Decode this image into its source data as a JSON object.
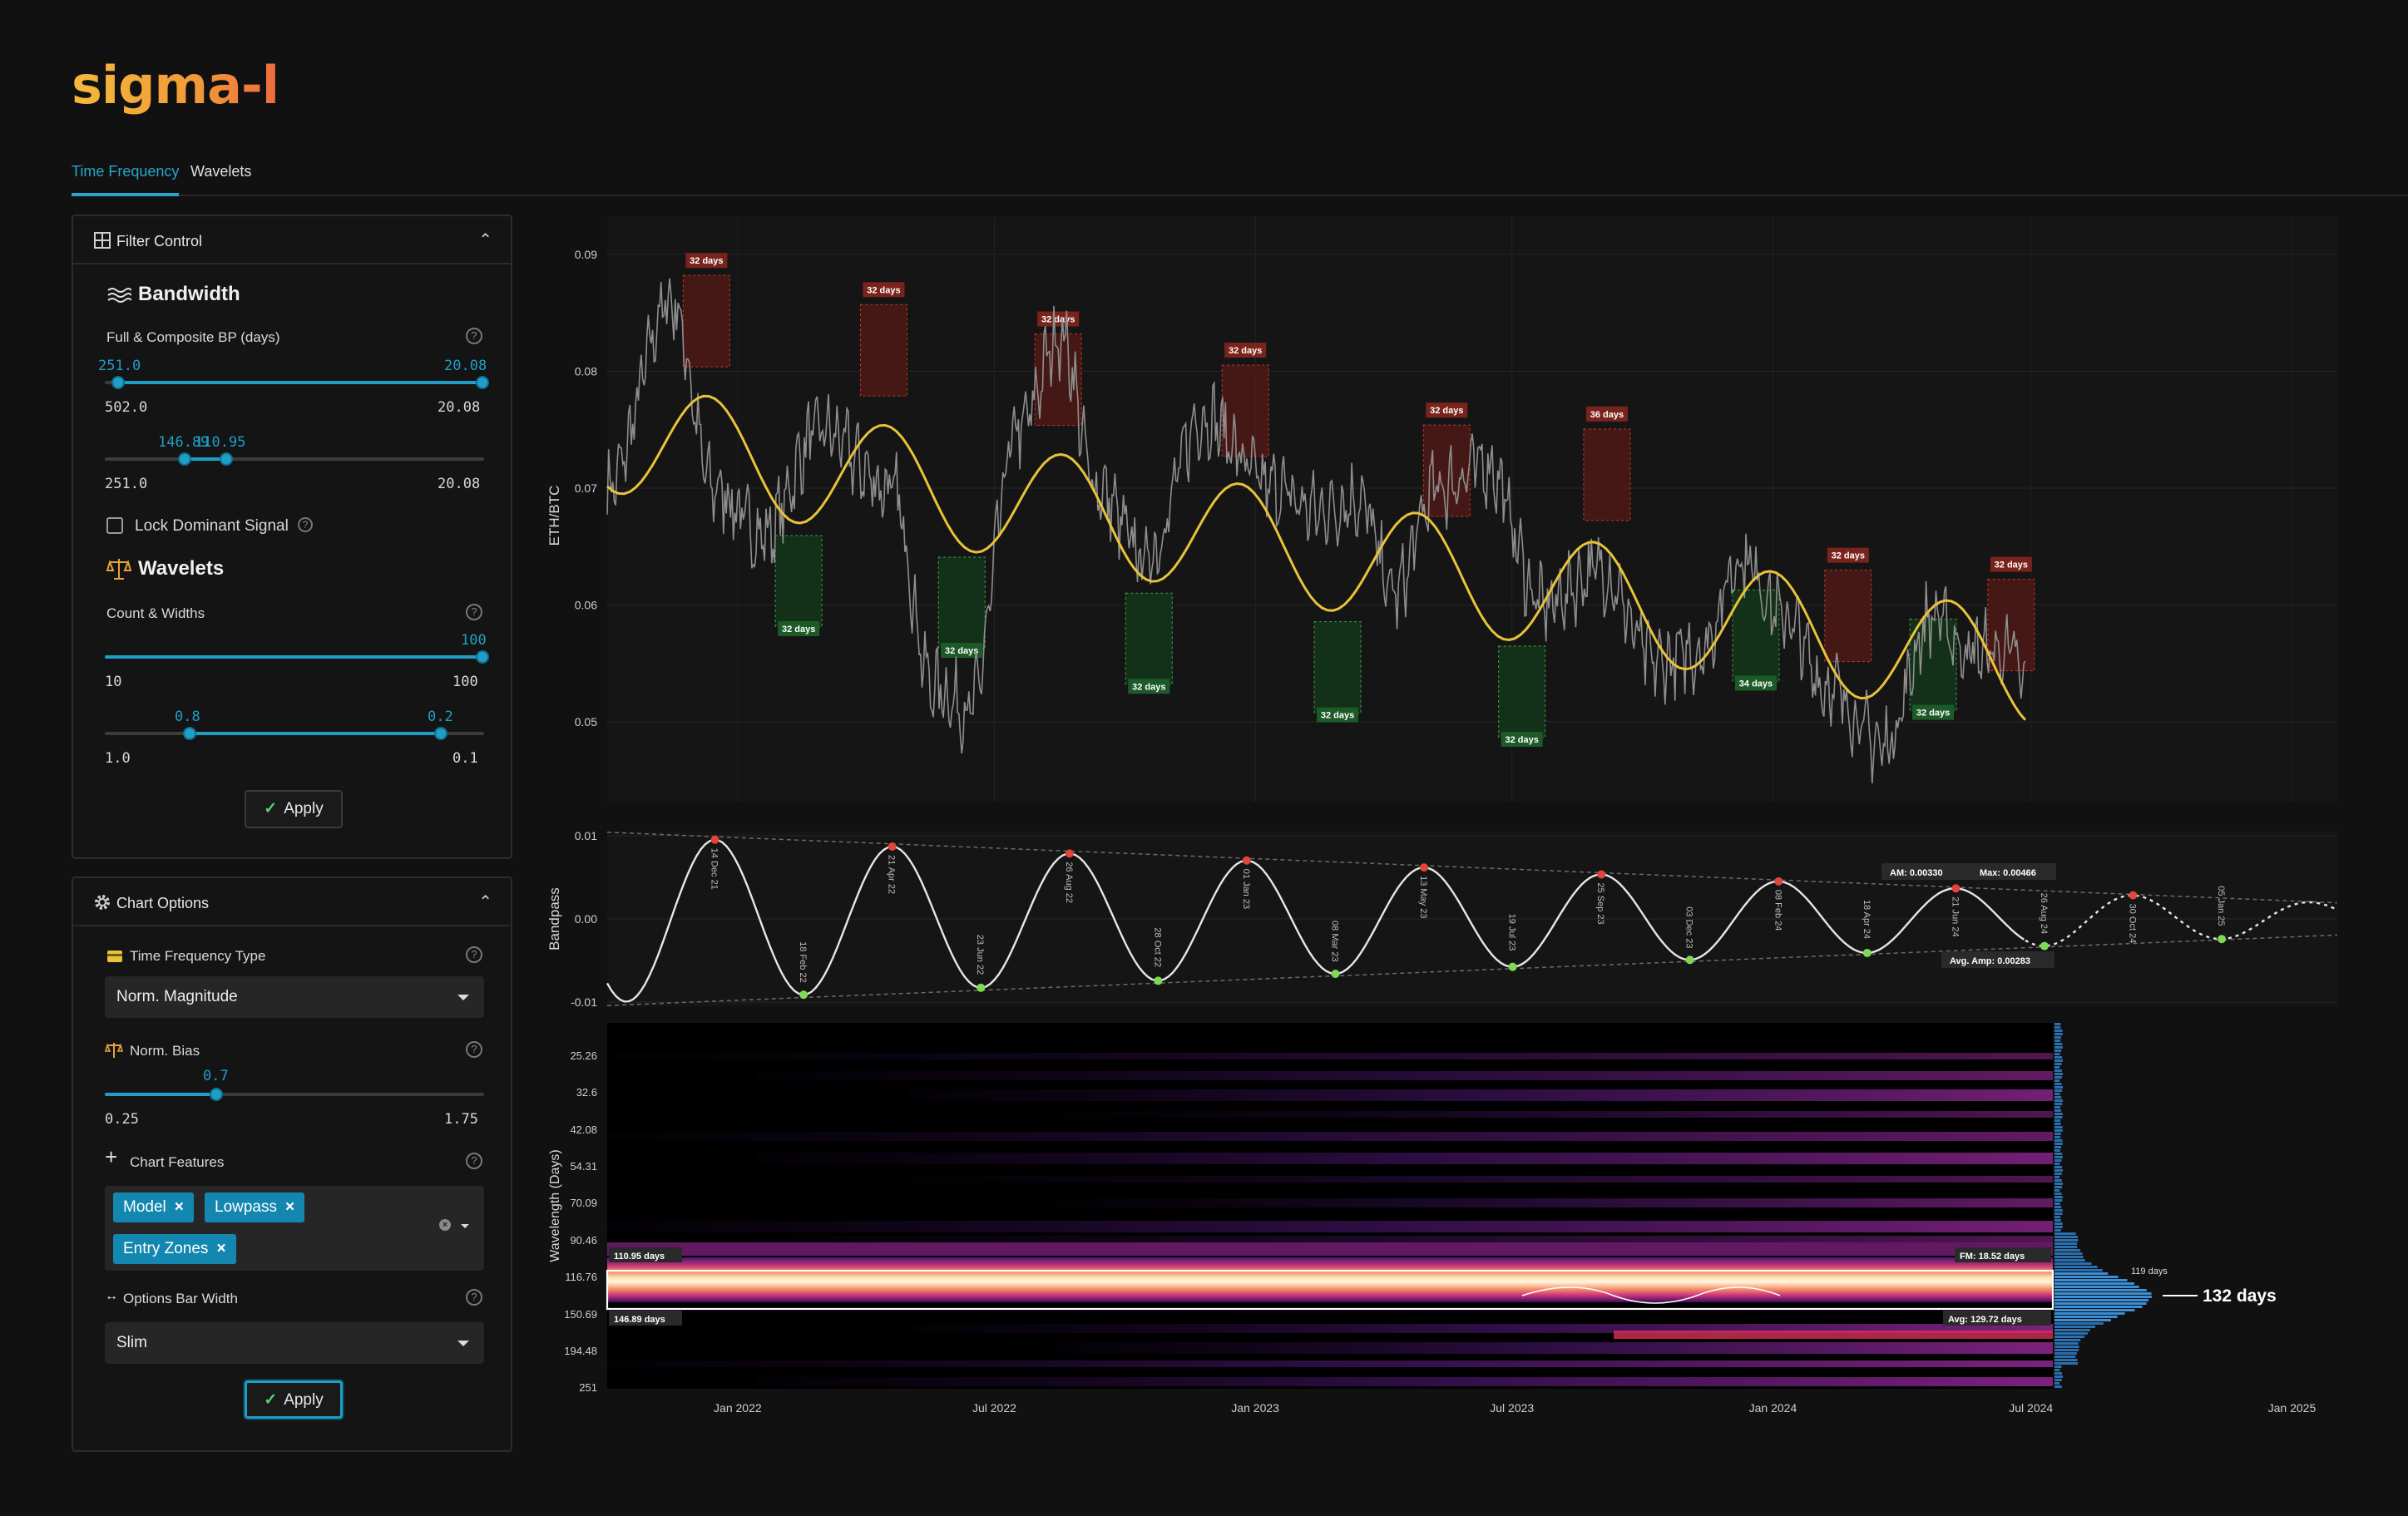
{
  "app": {
    "logo": "sigma-l"
  },
  "tabs": [
    {
      "label": "Time Frequency",
      "active": true
    },
    {
      "label": "Wavelets",
      "active": false
    }
  ],
  "filter_control": {
    "title": "Filter Control",
    "bandwidth": {
      "title": "Bandwidth",
      "label": "Full & Composite BP (days)",
      "slider1": {
        "low": "251.0",
        "high": "20.08",
        "min": "502.0",
        "max": "20.08"
      },
      "slider2": {
        "low": "146.89",
        "high": "110.95",
        "min": "251.0",
        "max": "20.08"
      }
    },
    "lock": {
      "label": "Lock Dominant Signal",
      "checked": false
    },
    "wavelets": {
      "title": "Wavelets",
      "label": "Count & Widths",
      "slider1": {
        "value": "100",
        "min": "10",
        "max": "100"
      },
      "slider2": {
        "low": "0.8",
        "high": "0.2",
        "min": "1.0",
        "max": "0.1"
      }
    },
    "apply_label": "Apply"
  },
  "chart_options": {
    "title": "Chart Options",
    "tf_type": {
      "label": "Time Frequency Type",
      "value": "Norm. Magnitude"
    },
    "bias": {
      "label": "Norm. Bias",
      "value": "0.7",
      "min": "0.25",
      "max": "1.75"
    },
    "features": {
      "label": "Chart Features",
      "chips": [
        "Model",
        "Lowpass",
        "Entry Zones"
      ]
    },
    "bar_width": {
      "label": "Options Bar Width",
      "value": "Slim"
    },
    "apply_label": "Apply"
  },
  "colors": {
    "accent": "#1f9fc7",
    "model": "#e8c33a",
    "peak": "#e2453a",
    "trough": "#7ed957",
    "price": "#9a9a9a"
  },
  "chart_data": [
    {
      "type": "line",
      "ylabel": "ETH/BTC",
      "y_ticks": [
        "0.09",
        "0.08",
        "0.07",
        "0.06",
        "0.05"
      ],
      "x_ticks": [
        "Jan 2022",
        "Jul 2022",
        "Jan 2023",
        "Jul 2023",
        "Jan 2024",
        "Jul 2024",
        "Jan 2025"
      ],
      "zones": [
        {
          "kind": "peak",
          "label": "32 days"
        },
        {
          "kind": "trough",
          "label": "32 days"
        },
        {
          "kind": "peak",
          "label": "32 days"
        },
        {
          "kind": "trough",
          "label": "32 days"
        },
        {
          "kind": "peak",
          "label": "32 days"
        },
        {
          "kind": "trough",
          "label": "32 days"
        },
        {
          "kind": "peak",
          "label": "32 days"
        },
        {
          "kind": "trough",
          "label": "32 days"
        },
        {
          "kind": "peak",
          "label": "32 days"
        },
        {
          "kind": "trough",
          "label": "32 days"
        },
        {
          "kind": "peak",
          "label": "36 days"
        },
        {
          "kind": "trough",
          "label": "34 days"
        },
        {
          "kind": "peak",
          "label": "32 days"
        },
        {
          "kind": "trough",
          "label": "32 days"
        },
        {
          "kind": "peak",
          "label": "32 days"
        }
      ]
    },
    {
      "type": "line",
      "ylabel": "Bandpass",
      "y_ticks": [
        "0.01",
        "0.00",
        "-0.01"
      ],
      "point_labels": [
        "14 Dec 21",
        "18 Feb 22",
        "21 Apr 22",
        "23 Jun 22",
        "26 Aug 22",
        "28 Oct 22",
        "01 Jan 23",
        "08 Mar 23",
        "13 May 23",
        "19 Jul 23",
        "25 Sep 23",
        "03 Dec 23",
        "08 Feb 24",
        "18 Apr 24",
        "21 Jun 24",
        "26 Aug 24",
        "30 Oct 24",
        "05 Jan 25"
      ],
      "stats": {
        "am": "AM: 0.00330",
        "max": "Max: 0.00466",
        "avg_amp": "Avg. Amp: 0.00283"
      }
    },
    {
      "type": "heatmap",
      "ylabel": "Wavelength (Days)",
      "y_ticks": [
        "25.26",
        "32.6",
        "42.08",
        "54.31",
        "70.09",
        "90.46",
        "116.76",
        "150.69",
        "194.48",
        "251"
      ],
      "band_top": "110.95 days",
      "band_bottom": "146.89 days",
      "fm": "FM: 18.52 days",
      "avg": "Avg: 129.72 days",
      "dominant": "132 days",
      "hist_peak": "119 days"
    }
  ]
}
